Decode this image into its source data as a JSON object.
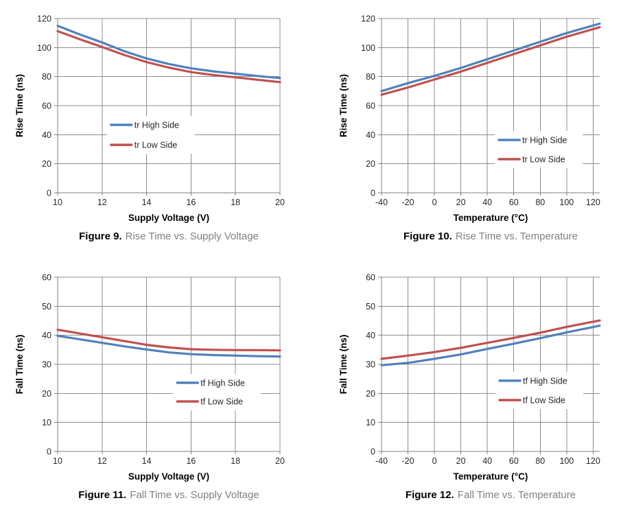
{
  "colors": {
    "background": "#FFFFFF",
    "grid": "#8C8C8C",
    "axis": "#7F7F7F",
    "tick_text": "#262626",
    "axis_title": "#000000",
    "legend_text": "#262626",
    "caption_label": "#000000",
    "caption_text": "#808080",
    "high_side": "#4F81BD",
    "low_side": "#C0504D"
  },
  "chart_data": [
    {
      "type": "line",
      "caption": {
        "label": "Figure 9.",
        "text": "Rise Time vs. Supply Voltage"
      },
      "xlabel": "Supply Voltage (V)",
      "ylabel": "Rise Time (ns)",
      "xlim": [
        10,
        20
      ],
      "ylim": [
        0,
        120
      ],
      "xticks": [
        10,
        12,
        14,
        16,
        18,
        20
      ],
      "yticks": [
        0,
        20,
        40,
        60,
        80,
        100,
        120
      ],
      "grid": true,
      "legend": {
        "position": "inside",
        "x_frac": 0.24,
        "row_fracs": [
          0.61,
          0.725
        ]
      },
      "x": [
        10,
        11,
        12,
        13,
        14,
        15,
        16,
        17,
        18,
        19,
        20
      ],
      "series": [
        {
          "name": "tr High Side",
          "color": "#4F81BD",
          "values": [
            115,
            109,
            103.5,
            97.5,
            92.5,
            88.7,
            85.7,
            83.6,
            82,
            80.4,
            79
          ]
        },
        {
          "name": "tr Low Side",
          "color": "#C0504D",
          "values": [
            111.3,
            105.7,
            100.4,
            94.9,
            90,
            86.2,
            83.1,
            81.1,
            79.5,
            77.8,
            76.2
          ]
        }
      ]
    },
    {
      "type": "line",
      "caption": {
        "label": "Figure 10.",
        "text": "Rise Time vs. Temperature"
      },
      "xlabel": "Temperature (°C)",
      "ylabel": "Rise Time (ns)",
      "xlim": [
        -40,
        125
      ],
      "ylim": [
        0,
        120
      ],
      "xticks": [
        -40,
        -20,
        0,
        20,
        40,
        60,
        80,
        100,
        120
      ],
      "yticks": [
        0,
        20,
        40,
        60,
        80,
        100,
        120
      ],
      "grid": true,
      "legend": {
        "position": "inside",
        "x_frac": 0.538,
        "row_fracs": [
          0.697,
          0.807
        ]
      },
      "x": [
        -40,
        -20,
        0,
        20,
        40,
        60,
        80,
        100,
        125
      ],
      "series": [
        {
          "name": "tr High Side",
          "color": "#4F81BD",
          "values": [
            70,
            75.5,
            80.5,
            86,
            92,
            98,
            104,
            110,
            116.5
          ]
        },
        {
          "name": "tr Low Side",
          "color": "#C0504D",
          "values": [
            67.5,
            72.5,
            78,
            83.5,
            89.5,
            95.5,
            101.5,
            107.5,
            114
          ]
        }
      ]
    },
    {
      "type": "line",
      "caption": {
        "label": "Figure 11.",
        "text": "Fall Time vs. Supply Voltage"
      },
      "xlabel": "Supply Voltage (V)",
      "ylabel": "Fall Time (ns)",
      "xlim": [
        10,
        20
      ],
      "ylim": [
        0,
        60
      ],
      "xticks": [
        10,
        12,
        14,
        16,
        18,
        20
      ],
      "yticks": [
        0,
        10,
        20,
        30,
        40,
        50,
        60
      ],
      "grid": true,
      "legend": {
        "position": "inside",
        "x_frac": 0.538,
        "row_fracs": [
          0.606,
          0.713
        ]
      },
      "x": [
        10,
        11,
        12,
        13,
        14,
        15,
        16,
        17,
        18,
        19,
        20
      ],
      "series": [
        {
          "name": "tf High Side",
          "color": "#4F81BD",
          "values": [
            39.8,
            38.6,
            37.4,
            36.2,
            35.1,
            34.1,
            33.5,
            33.2,
            33,
            32.8,
            32.7
          ]
        },
        {
          "name": "tf Low Side",
          "color": "#C0504D",
          "values": [
            41.9,
            40.6,
            39.3,
            38,
            36.7,
            35.8,
            35.2,
            35,
            34.9,
            34.9,
            34.8
          ]
        }
      ]
    },
    {
      "type": "line",
      "caption": {
        "label": "Figure 12.",
        "text": "Fall Time vs. Temperature"
      },
      "xlabel": "Temperature (°C)",
      "ylabel": "Fall Time (ns)",
      "xlim": [
        -40,
        125
      ],
      "ylim": [
        0,
        60
      ],
      "xticks": [
        -40,
        -20,
        0,
        20,
        40,
        60,
        80,
        100,
        120
      ],
      "yticks": [
        0,
        10,
        20,
        30,
        40,
        50,
        60
      ],
      "grid": true,
      "legend": {
        "position": "inside",
        "x_frac": 0.541,
        "row_fracs": [
          0.594,
          0.705
        ]
      },
      "x": [
        -40,
        -20,
        0,
        20,
        40,
        60,
        80,
        100,
        125
      ],
      "series": [
        {
          "name": "tf High Side",
          "color": "#4F81BD",
          "values": [
            29.7,
            30.5,
            31.9,
            33.4,
            35.3,
            37.1,
            39,
            41,
            43.3
          ]
        },
        {
          "name": "tf Low Side",
          "color": "#C0504D",
          "values": [
            31.9,
            33,
            34.2,
            35.7,
            37.4,
            39.1,
            40.9,
            42.9,
            45.1
          ]
        }
      ]
    }
  ]
}
